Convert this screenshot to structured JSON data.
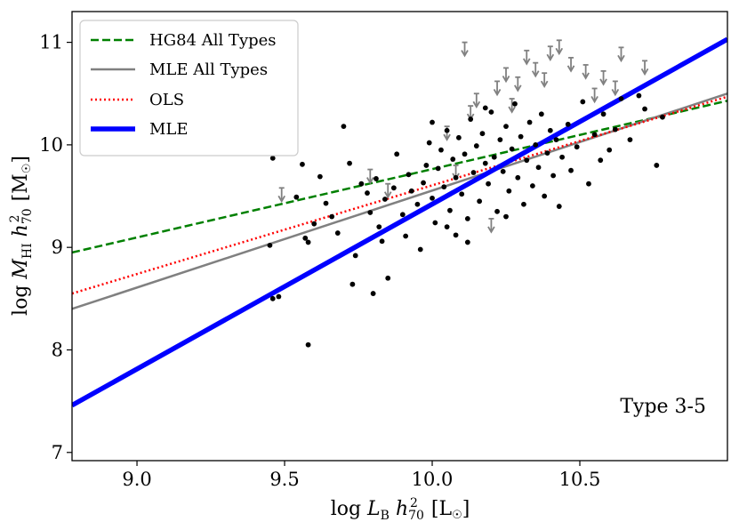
{
  "chart_data": {
    "type": "scatter",
    "title": "",
    "xlabel": "log L_B h_70^2 [L_sun]",
    "ylabel": "log M_HI h_70^2 [M_sun]",
    "xlabel_parts": {
      "pre": "log ",
      "var": "L",
      "sub": "B",
      "mid": " h",
      "sub2": "70",
      "sup": "2",
      "post": " [L",
      "sym": "☉",
      "end": "]"
    },
    "ylabel_parts": {
      "pre": "log ",
      "var": "M",
      "sub": "HI",
      "mid": " h",
      "sub2": "70",
      "sup": "2",
      "post": " [M",
      "sym": "☉",
      "end": "]"
    },
    "xlim": [
      8.78,
      11.0
    ],
    "ylim": [
      6.92,
      11.3
    ],
    "x_ticks": [
      9.0,
      9.5,
      10.0,
      10.5
    ],
    "x_tick_labels": [
      "9.0",
      "9.5",
      "10.0",
      "10.5"
    ],
    "y_ticks": [
      7,
      8,
      9,
      10,
      11
    ],
    "y_tick_labels": [
      "7",
      "8",
      "9",
      "10",
      "11"
    ],
    "annotation": "Type 3-5",
    "legend_position": "top-left",
    "lines": [
      {
        "name": "HG84 All Types",
        "style": "dashed",
        "color": "#008000",
        "x": [
          8.78,
          11.0
        ],
        "y": [
          8.95,
          10.43
        ]
      },
      {
        "name": "MLE All Types",
        "style": "solid-thin",
        "color": "#808080",
        "x": [
          8.78,
          11.0
        ],
        "y": [
          8.4,
          10.5
        ]
      },
      {
        "name": "OLS",
        "style": "dotted",
        "color": "#ff0000",
        "x": [
          8.78,
          11.0
        ],
        "y": [
          8.55,
          10.47
        ]
      },
      {
        "name": "MLE",
        "style": "solid-thick",
        "color": "#0000ff",
        "x": [
          8.78,
          11.0
        ],
        "y": [
          7.46,
          11.03
        ]
      }
    ],
    "points_detected": [
      [
        9.45,
        9.02
      ],
      [
        9.46,
        9.87
      ],
      [
        9.46,
        8.5
      ],
      [
        9.48,
        8.52
      ],
      [
        9.54,
        9.49
      ],
      [
        9.56,
        9.81
      ],
      [
        9.57,
        9.09
      ],
      [
        9.58,
        9.05
      ],
      [
        9.58,
        8.05
      ],
      [
        9.6,
        9.23
      ],
      [
        9.62,
        9.69
      ],
      [
        9.64,
        9.43
      ],
      [
        9.66,
        9.3
      ],
      [
        9.68,
        9.14
      ],
      [
        9.7,
        10.18
      ],
      [
        9.72,
        9.82
      ],
      [
        9.74,
        8.92
      ],
      [
        9.76,
        9.62
      ],
      [
        9.73,
        8.64
      ],
      [
        9.78,
        9.53
      ],
      [
        9.79,
        9.34
      ],
      [
        9.8,
        8.55
      ],
      [
        9.81,
        9.67
      ],
      [
        9.82,
        9.2
      ],
      [
        9.83,
        9.06
      ],
      [
        9.84,
        9.47
      ],
      [
        9.85,
        8.7
      ],
      [
        9.87,
        9.58
      ],
      [
        9.88,
        9.91
      ],
      [
        9.9,
        9.32
      ],
      [
        9.91,
        9.11
      ],
      [
        9.92,
        9.71
      ],
      [
        9.93,
        9.55
      ],
      [
        9.95,
        9.42
      ],
      [
        9.96,
        8.98
      ],
      [
        9.97,
        9.63
      ],
      [
        9.98,
        9.8
      ],
      [
        9.99,
        10.02
      ],
      [
        10.0,
        9.48
      ],
      [
        10.01,
        9.24
      ],
      [
        10.02,
        9.77
      ],
      [
        10.03,
        9.95
      ],
      [
        10.04,
        9.59
      ],
      [
        10.05,
        10.14
      ],
      [
        10.06,
        9.36
      ],
      [
        10.07,
        9.86
      ],
      [
        10.08,
        9.68
      ],
      [
        10.09,
        10.07
      ],
      [
        10.1,
        9.52
      ],
      [
        10.11,
        9.91
      ],
      [
        10.12,
        9.28
      ],
      [
        10.13,
        10.25
      ],
      [
        10.14,
        9.73
      ],
      [
        10.15,
        9.99
      ],
      [
        10.16,
        9.45
      ],
      [
        10.17,
        10.11
      ],
      [
        10.18,
        9.82
      ],
      [
        10.19,
        9.62
      ],
      [
        10.2,
        10.32
      ],
      [
        10.21,
        9.88
      ],
      [
        10.22,
        9.35
      ],
      [
        10.23,
        10.05
      ],
      [
        10.24,
        9.74
      ],
      [
        10.25,
        10.18
      ],
      [
        10.26,
        9.55
      ],
      [
        10.27,
        9.96
      ],
      [
        10.28,
        10.4
      ],
      [
        10.29,
        9.68
      ],
      [
        10.3,
        10.08
      ],
      [
        10.31,
        9.42
      ],
      [
        10.32,
        9.85
      ],
      [
        10.33,
        10.22
      ],
      [
        10.34,
        9.6
      ],
      [
        10.35,
        10.0
      ],
      [
        10.36,
        9.78
      ],
      [
        10.37,
        10.3
      ],
      [
        10.38,
        9.5
      ],
      [
        10.39,
        9.92
      ],
      [
        10.4,
        10.14
      ],
      [
        10.41,
        9.7
      ],
      [
        10.42,
        10.05
      ],
      [
        10.43,
        9.4
      ],
      [
        10.44,
        9.88
      ],
      [
        10.46,
        10.2
      ],
      [
        10.47,
        9.75
      ],
      [
        10.49,
        9.98
      ],
      [
        10.51,
        10.42
      ],
      [
        10.53,
        9.62
      ],
      [
        10.55,
        10.1
      ],
      [
        10.57,
        9.85
      ],
      [
        10.58,
        10.3
      ],
      [
        10.6,
        9.95
      ],
      [
        10.62,
        10.15
      ],
      [
        10.64,
        10.45
      ],
      [
        10.67,
        10.05
      ],
      [
        10.7,
        10.48
      ],
      [
        10.72,
        10.35
      ],
      [
        10.76,
        9.8
      ],
      [
        10.78,
        10.27
      ],
      [
        10.12,
        9.05
      ],
      [
        10.08,
        9.12
      ],
      [
        10.0,
        10.22
      ],
      [
        10.05,
        9.2
      ],
      [
        10.18,
        10.36
      ],
      [
        10.25,
        9.3
      ]
    ],
    "points_upper_limits": [
      [
        9.49,
        9.58
      ],
      [
        9.79,
        9.76
      ],
      [
        9.85,
        9.62
      ],
      [
        10.05,
        10.18
      ],
      [
        10.11,
        11.0
      ],
      [
        10.15,
        10.5
      ],
      [
        10.22,
        10.62
      ],
      [
        10.25,
        10.75
      ],
      [
        10.29,
        10.66
      ],
      [
        10.32,
        10.92
      ],
      [
        10.35,
        10.8
      ],
      [
        10.38,
        10.7
      ],
      [
        10.4,
        10.96
      ],
      [
        10.43,
        11.02
      ],
      [
        10.47,
        10.85
      ],
      [
        10.52,
        10.78
      ],
      [
        10.55,
        10.55
      ],
      [
        10.58,
        10.72
      ],
      [
        10.62,
        10.62
      ],
      [
        10.64,
        10.95
      ],
      [
        10.72,
        10.82
      ],
      [
        10.13,
        10.38
      ],
      [
        10.27,
        10.45
      ],
      [
        10.08,
        9.8
      ],
      [
        10.2,
        9.28
      ]
    ]
  }
}
